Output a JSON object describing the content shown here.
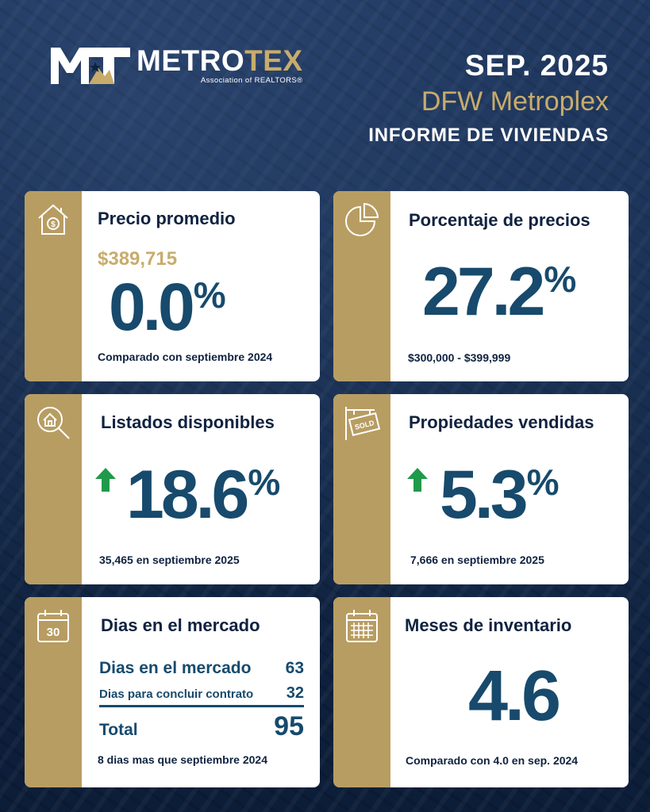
{
  "header": {
    "logo_word_a": "METRO",
    "logo_word_b": "TEX",
    "logo_sub": "Association of REALTORS®",
    "date": "SEP. 2025",
    "region": "DFW Metroplex",
    "report": "INFORME DE VIVIENDAS"
  },
  "cards": {
    "avg_price": {
      "icon": "house-dollar-icon",
      "title": "Precio promedio",
      "price": "$389,715",
      "value": "0.0",
      "unit": "%",
      "note": "Comparado con septiembre 2024"
    },
    "price_pct": {
      "icon": "pie-chart-icon",
      "title": "Porcentaje de precios",
      "value": "27.2",
      "unit": "%",
      "note": "$300,000 - $399,999"
    },
    "listings": {
      "icon": "magnifier-house-icon",
      "title": "Listados disponibles",
      "direction": "up",
      "value": "18.6",
      "unit": "%",
      "note": "35,465 en septiembre 2025"
    },
    "sold": {
      "icon": "sold-sign-icon",
      "title": "Propiedades vendidas",
      "direction": "up",
      "value": "5.3",
      "unit": "%",
      "note": "7,666 en septiembre 2025"
    },
    "days": {
      "icon": "calendar-30-icon",
      "icon_text": "30",
      "title": "Dias en el mercado",
      "row1_label": "Dias en el mercado",
      "row1_value": "63",
      "row2_label": "Dias para concluir contrato",
      "row2_value": "32",
      "total_label": "Total",
      "total_value": "95",
      "note": "8 dias mas que septiembre 2024"
    },
    "inventory": {
      "icon": "calendar-grid-icon",
      "title": "Meses de inventario",
      "value": "4.6",
      "note": "Comparado con 4.0 en sep. 2024"
    }
  },
  "colors": {
    "navy": "#0f2240",
    "gold": "#b89d62",
    "value_blue": "#174a6c",
    "arrow_green": "#1f9a4a"
  }
}
